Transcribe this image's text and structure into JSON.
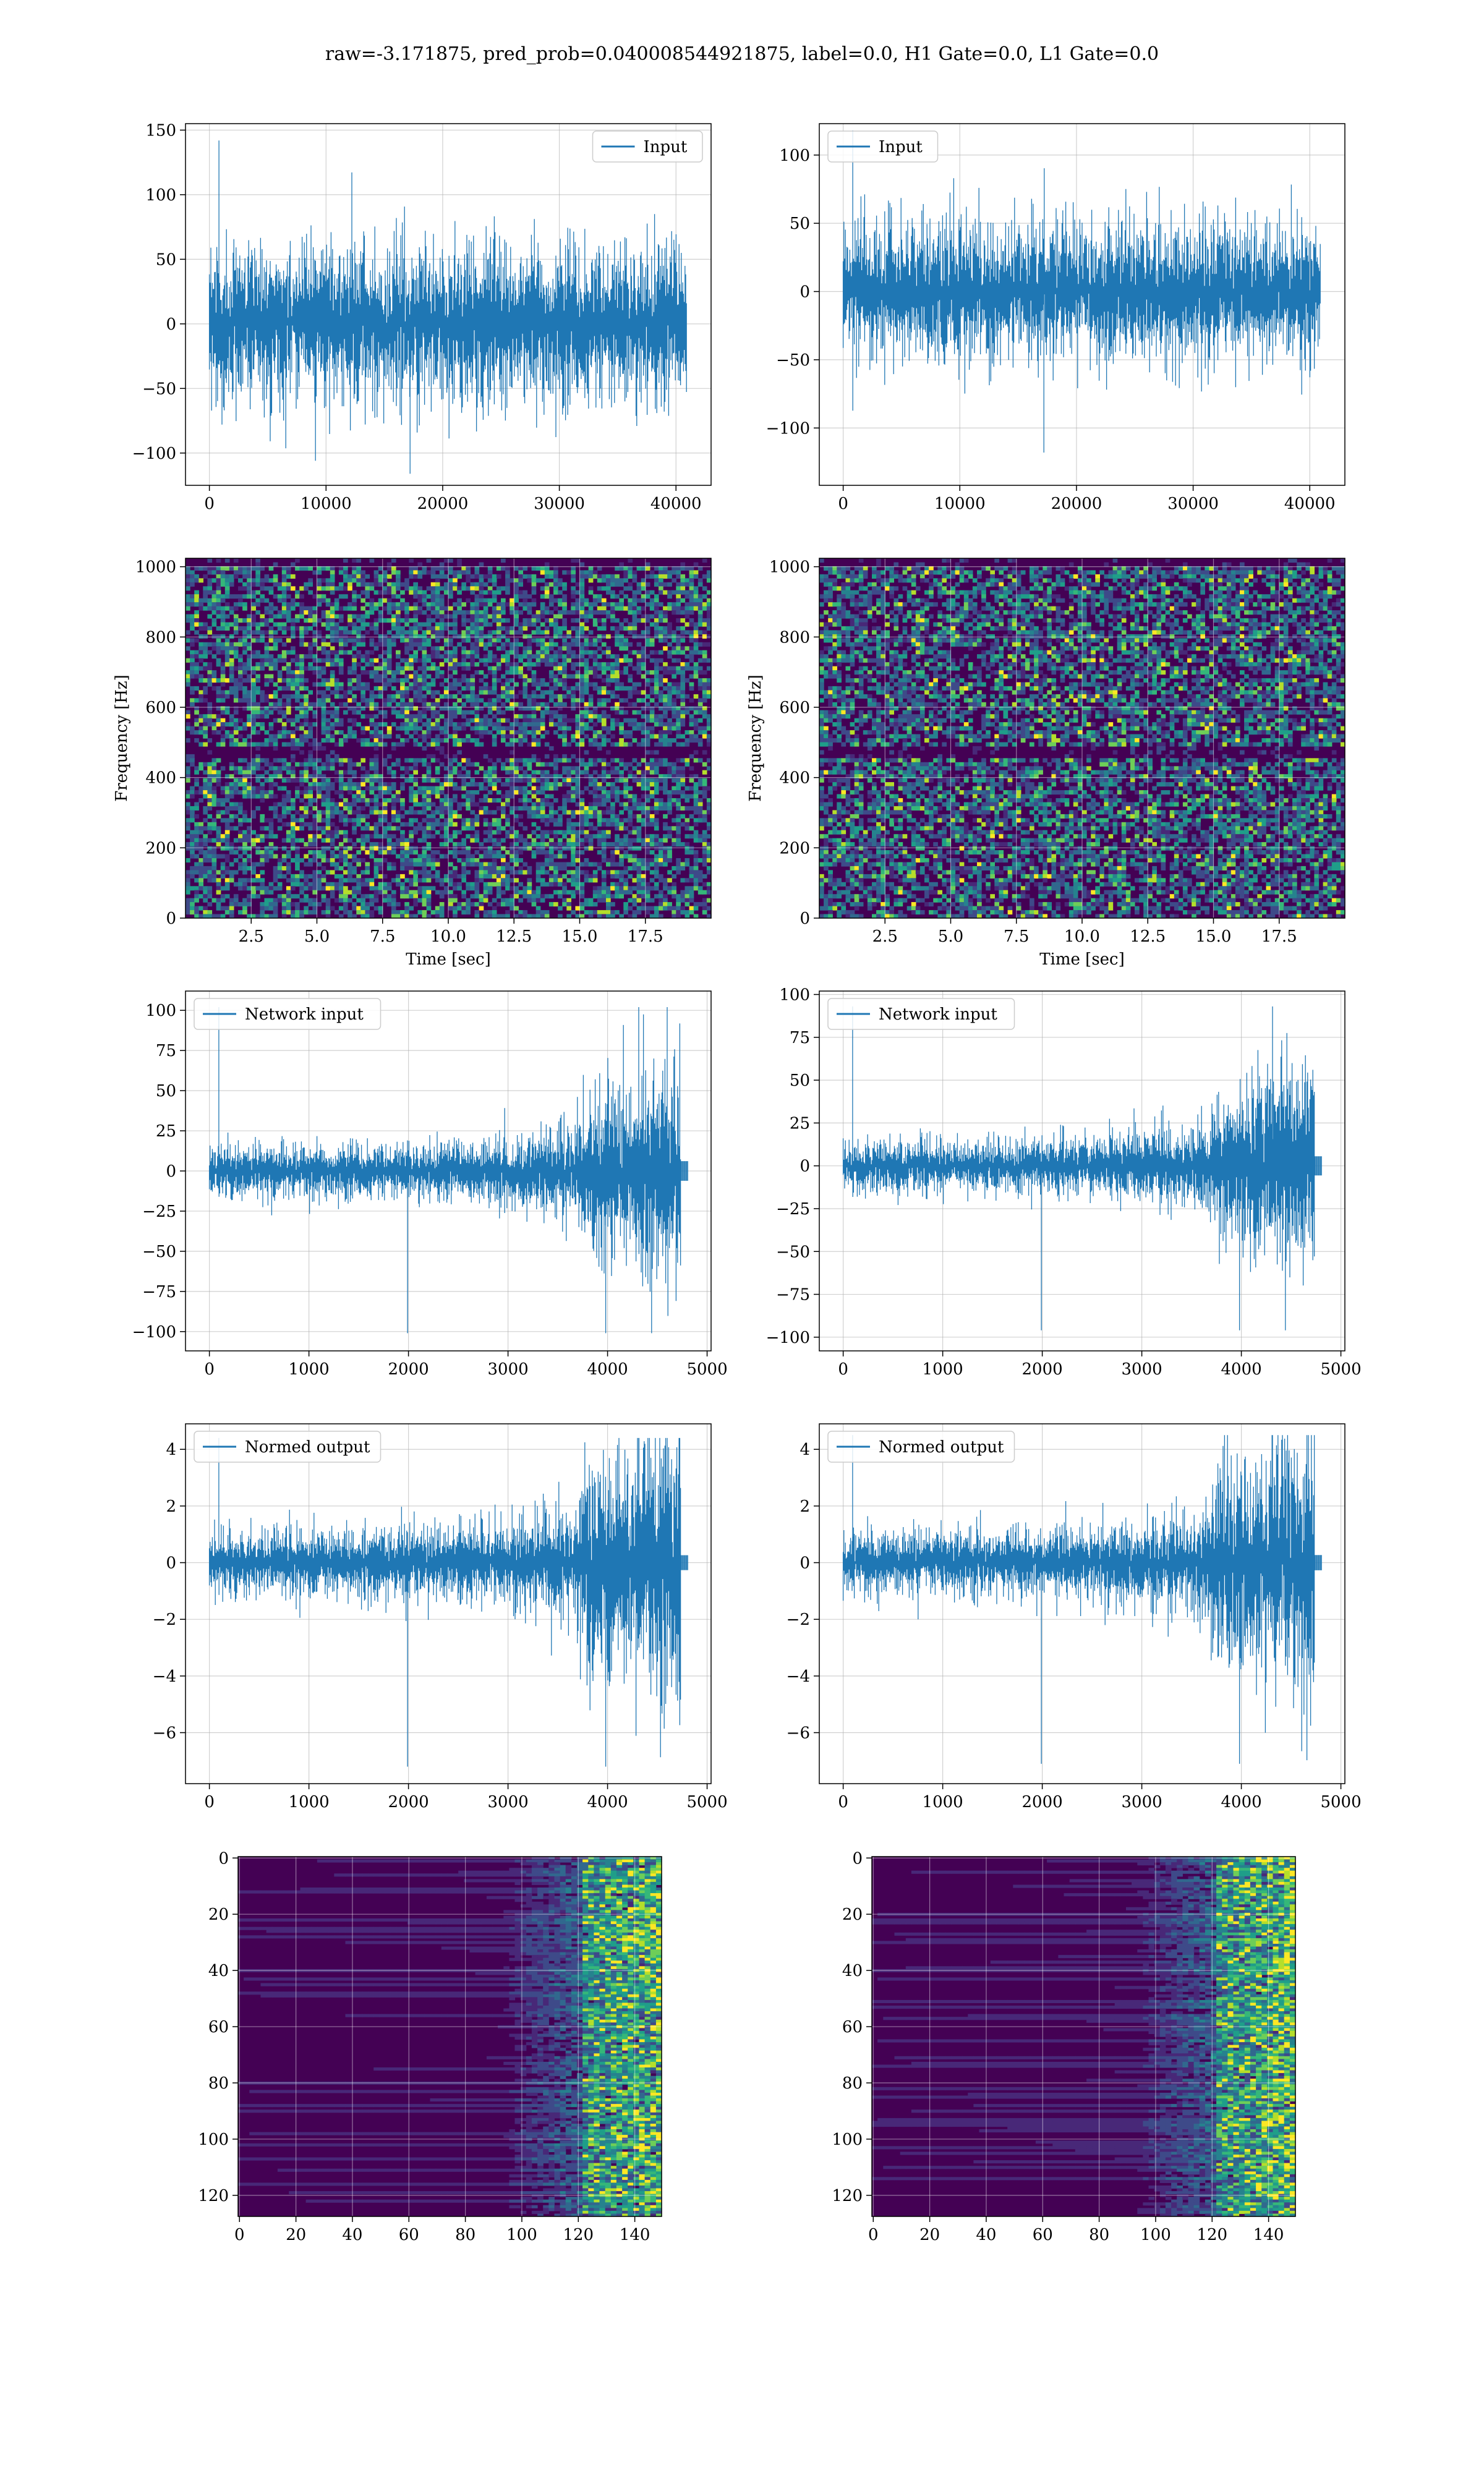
{
  "figure": {
    "title": "raw=-3.171875, pred_prob=0.040008544921875, label=0.0, H1 Gate=0.0, L1 Gate=0.0"
  },
  "colors": {
    "line": "#1f77b4",
    "grid": "#b0b0b0",
    "viridis_low": "#440154",
    "viridis_mid": "#31688e",
    "viridis_teal": "#21918c",
    "viridis_green": "#5ec962",
    "viridis_high": "#fde725"
  },
  "chart_data": [
    {
      "id": "input-h1",
      "type": "line",
      "row": 0,
      "col": 0,
      "legend": "Input",
      "legend_position": "upper right",
      "xlim": [
        -2048,
        43008
      ],
      "ylim": [
        -125,
        155
      ],
      "xticks": [
        0,
        10000,
        20000,
        30000,
        40000
      ],
      "yticks": [
        -100,
        -50,
        0,
        50,
        100,
        150
      ],
      "grid": true,
      "signal": {
        "x_start": 0,
        "x_end": 40960,
        "envelope": [
          [
            0,
            90
          ],
          [
            1,
            90
          ],
          [
            0.5,
            90
          ]
        ],
        "peak_max": 142,
        "peak_min": -116
      }
    },
    {
      "id": "input-l1",
      "type": "line",
      "row": 0,
      "col": 1,
      "legend": "Input",
      "legend_position": "upper left",
      "xlim": [
        -2048,
        43008
      ],
      "ylim": [
        -142,
        123
      ],
      "xticks": [
        0,
        10000,
        20000,
        30000,
        40000
      ],
      "yticks": [
        -100,
        -50,
        0,
        50,
        100
      ],
      "grid": true,
      "signal": {
        "x_start": 0,
        "x_end": 40960,
        "peak_max": 118,
        "peak_min": -118
      }
    },
    {
      "id": "spec-h1",
      "type": "heatmap",
      "row": 1,
      "col": 0,
      "xlabel": "Time [sec]",
      "ylabel": "Frequency [Hz]",
      "xlim": [
        0,
        20
      ],
      "ylim": [
        0,
        1024
      ],
      "xticks": [
        2.5,
        5.0,
        7.5,
        10.0,
        12.5,
        15.0,
        17.5
      ],
      "xtick_labels": [
        "2.5",
        "5.0",
        "7.5",
        "10.0",
        "12.5",
        "15.0",
        "17.5"
      ],
      "yticks": [
        0,
        200,
        400,
        600,
        800,
        1000
      ],
      "grid": true,
      "colormap": "viridis"
    },
    {
      "id": "spec-l1",
      "type": "heatmap",
      "row": 1,
      "col": 1,
      "xlabel": "Time [sec]",
      "ylabel": "Frequency [Hz]",
      "xlim": [
        0,
        20
      ],
      "ylim": [
        0,
        1024
      ],
      "xticks": [
        2.5,
        5.0,
        7.5,
        10.0,
        12.5,
        15.0,
        17.5
      ],
      "xtick_labels": [
        "2.5",
        "5.0",
        "7.5",
        "10.0",
        "12.5",
        "15.0",
        "17.5"
      ],
      "yticks": [
        0,
        200,
        400,
        600,
        800,
        1000
      ],
      "grid": true,
      "colormap": "viridis"
    },
    {
      "id": "netin-h1",
      "type": "line",
      "row": 2,
      "col": 0,
      "legend": "Network input",
      "legend_position": "upper left",
      "xlim": [
        -240,
        5040
      ],
      "ylim": [
        -112,
        112
      ],
      "xticks": [
        0,
        1000,
        2000,
        3000,
        4000,
        5000
      ],
      "yticks": [
        -100,
        -75,
        -50,
        -25,
        0,
        25,
        50,
        75,
        100
      ],
      "grid": true,
      "signal": {
        "x_start": 0,
        "x_end": 4740,
        "tail_end": 4810,
        "peak_max": 102,
        "peak_min": -101
      }
    },
    {
      "id": "netin-l1",
      "type": "line",
      "row": 2,
      "col": 1,
      "legend": "Network input",
      "legend_position": "upper left",
      "xlim": [
        -240,
        5040
      ],
      "ylim": [
        -108,
        102
      ],
      "xticks": [
        0,
        1000,
        2000,
        3000,
        4000,
        5000
      ],
      "yticks": [
        -100,
        -75,
        -50,
        -25,
        0,
        25,
        50,
        75,
        100
      ],
      "grid": true,
      "signal": {
        "x_start": 0,
        "x_end": 4740,
        "tail_end": 4810,
        "peak_max": 93,
        "peak_min": -96
      }
    },
    {
      "id": "normed-h1",
      "type": "line",
      "row": 3,
      "col": 0,
      "legend": "Normed output",
      "legend_position": "upper left",
      "xlim": [
        -240,
        5040
      ],
      "ylim": [
        -7.8,
        4.9
      ],
      "xticks": [
        0,
        1000,
        2000,
        3000,
        4000,
        5000
      ],
      "yticks": [
        -6,
        -4,
        -2,
        0,
        2,
        4
      ],
      "grid": true,
      "signal": {
        "x_start": 0,
        "x_end": 4740,
        "tail_end": 4810,
        "peak_max": 4.4,
        "peak_min": -7.2
      }
    },
    {
      "id": "normed-l1",
      "type": "line",
      "row": 3,
      "col": 1,
      "legend": "Normed output",
      "legend_position": "upper left",
      "xlim": [
        -240,
        5040
      ],
      "ylim": [
        -7.8,
        4.9
      ],
      "xticks": [
        0,
        1000,
        2000,
        3000,
        4000,
        5000
      ],
      "yticks": [
        -6,
        -4,
        -2,
        0,
        2,
        4
      ],
      "grid": true,
      "signal": {
        "x_start": 0,
        "x_end": 4740,
        "tail_end": 4810,
        "peak_max": 4.5,
        "peak_min": -7.1
      }
    },
    {
      "id": "feat-h1",
      "type": "heatmap",
      "row": 4,
      "col": 0,
      "xlim": [
        -0.5,
        149.5
      ],
      "ylim": [
        127.5,
        -0.5
      ],
      "xticks": [
        0,
        20,
        40,
        60,
        80,
        100,
        120,
        140
      ],
      "yticks": [
        0,
        20,
        40,
        60,
        80,
        100,
        120
      ],
      "grid": true,
      "colormap": "viridis"
    },
    {
      "id": "feat-l1",
      "type": "heatmap",
      "row": 4,
      "col": 1,
      "xlim": [
        -0.5,
        149.5
      ],
      "ylim": [
        127.5,
        -0.5
      ],
      "xticks": [
        0,
        20,
        40,
        60,
        80,
        100,
        120,
        140
      ],
      "yticks": [
        0,
        20,
        40,
        60,
        80,
        100,
        120
      ],
      "grid": true,
      "colormap": "viridis"
    }
  ]
}
